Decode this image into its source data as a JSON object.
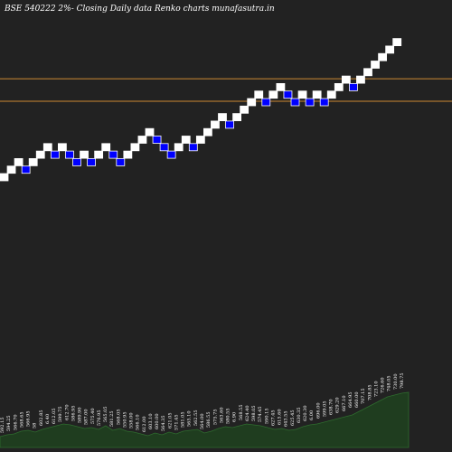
{
  "chart_data": {
    "type": "renko",
    "title": "BSE 540222  2%-  Closing Daily data  Renko  charts munafasutra.in",
    "colors": {
      "background": "#222222",
      "up_brick": "#ffffff",
      "down_brick": "#0000ff",
      "reference_line": "#cc8833",
      "volume_area": "#1f3d1f",
      "volume_line": "#2e6b2e"
    },
    "reference_lines": [
      {
        "price_level_step": 10
      },
      {
        "price_level_step": 13
      }
    ],
    "bricks": [
      {
        "level": 0,
        "dir": "up"
      },
      {
        "level": 1,
        "dir": "up"
      },
      {
        "level": 2,
        "dir": "up"
      },
      {
        "level": 1,
        "dir": "down"
      },
      {
        "level": 2,
        "dir": "up"
      },
      {
        "level": 3,
        "dir": "up"
      },
      {
        "level": 4,
        "dir": "up"
      },
      {
        "level": 3,
        "dir": "down"
      },
      {
        "level": 4,
        "dir": "up"
      },
      {
        "level": 3,
        "dir": "down"
      },
      {
        "level": 2,
        "dir": "down"
      },
      {
        "level": 3,
        "dir": "up"
      },
      {
        "level": 2,
        "dir": "down"
      },
      {
        "level": 3,
        "dir": "up"
      },
      {
        "level": 4,
        "dir": "up"
      },
      {
        "level": 3,
        "dir": "down"
      },
      {
        "level": 2,
        "dir": "down"
      },
      {
        "level": 3,
        "dir": "up"
      },
      {
        "level": 4,
        "dir": "up"
      },
      {
        "level": 5,
        "dir": "up"
      },
      {
        "level": 6,
        "dir": "up"
      },
      {
        "level": 5,
        "dir": "down"
      },
      {
        "level": 4,
        "dir": "down"
      },
      {
        "level": 3,
        "dir": "down"
      },
      {
        "level": 4,
        "dir": "up"
      },
      {
        "level": 5,
        "dir": "up"
      },
      {
        "level": 4,
        "dir": "down"
      },
      {
        "level": 5,
        "dir": "up"
      },
      {
        "level": 6,
        "dir": "up"
      },
      {
        "level": 7,
        "dir": "up"
      },
      {
        "level": 8,
        "dir": "up"
      },
      {
        "level": 7,
        "dir": "down"
      },
      {
        "level": 8,
        "dir": "up"
      },
      {
        "level": 9,
        "dir": "up"
      },
      {
        "level": 10,
        "dir": "up"
      },
      {
        "level": 11,
        "dir": "up"
      },
      {
        "level": 10,
        "dir": "down"
      },
      {
        "level": 11,
        "dir": "up"
      },
      {
        "level": 12,
        "dir": "up"
      },
      {
        "level": 11,
        "dir": "down"
      },
      {
        "level": 10,
        "dir": "down"
      },
      {
        "level": 11,
        "dir": "up"
      },
      {
        "level": 10,
        "dir": "down"
      },
      {
        "level": 11,
        "dir": "up"
      },
      {
        "level": 10,
        "dir": "down"
      },
      {
        "level": 11,
        "dir": "up"
      },
      {
        "level": 12,
        "dir": "up"
      },
      {
        "level": 13,
        "dir": "up"
      },
      {
        "level": 12,
        "dir": "down"
      },
      {
        "level": 13,
        "dir": "up"
      },
      {
        "level": 14,
        "dir": "up"
      },
      {
        "level": 15,
        "dir": "up"
      },
      {
        "level": 16,
        "dir": "up"
      },
      {
        "level": 17,
        "dir": "up"
      },
      {
        "level": 18,
        "dir": "up"
      }
    ],
    "volume": [
      12,
      14,
      15,
      18,
      19,
      17,
      20,
      22,
      24,
      26,
      25,
      23,
      21,
      22,
      20,
      24,
      19,
      21,
      18,
      17,
      15,
      13,
      16,
      14,
      17,
      15,
      18,
      19,
      20,
      16,
      18,
      21,
      23,
      22,
      24,
      26,
      25,
      24,
      22,
      20,
      21,
      19,
      20,
      23,
      25,
      26,
      28,
      30,
      32,
      34,
      36,
      40,
      44,
      48,
      52,
      56,
      58,
      60,
      61
    ],
    "volume_labels": [
      "592.15",
      "594.25",
      "566.70",
      "568.65",
      "566.95",
      "58",
      "602.85",
      "6.40",
      "612.05",
      "599.75",
      "612.70",
      "586.95",
      "589.90",
      "587.00",
      "575.40",
      "576.95",
      "565.05",
      "581.25",
      "568.05",
      "550.95",
      "558.00",
      "566.10",
      "612.00",
      "603.10",
      "600.00",
      "564.35",
      "621.05",
      "571.45",
      "581.05",
      "565.10",
      "562.55",
      "564.00",
      "586.55",
      "575.75",
      "563.60",
      "580.55",
      "6.90",
      "568.55",
      "624.40",
      "598.05",
      "574.45",
      "590.15",
      "627.45",
      "615.60",
      "643.55",
      "625.45",
      "630.35",
      "620.30",
      "6.00",
      "696.00",
      "599.05",
      "638.70",
      "629.20",
      "667.10",
      "664.95",
      "660.00",
      "707.15",
      "708.85",
      "723.10",
      "726.60",
      "748.05",
      "730.00",
      "798.75"
    ]
  }
}
